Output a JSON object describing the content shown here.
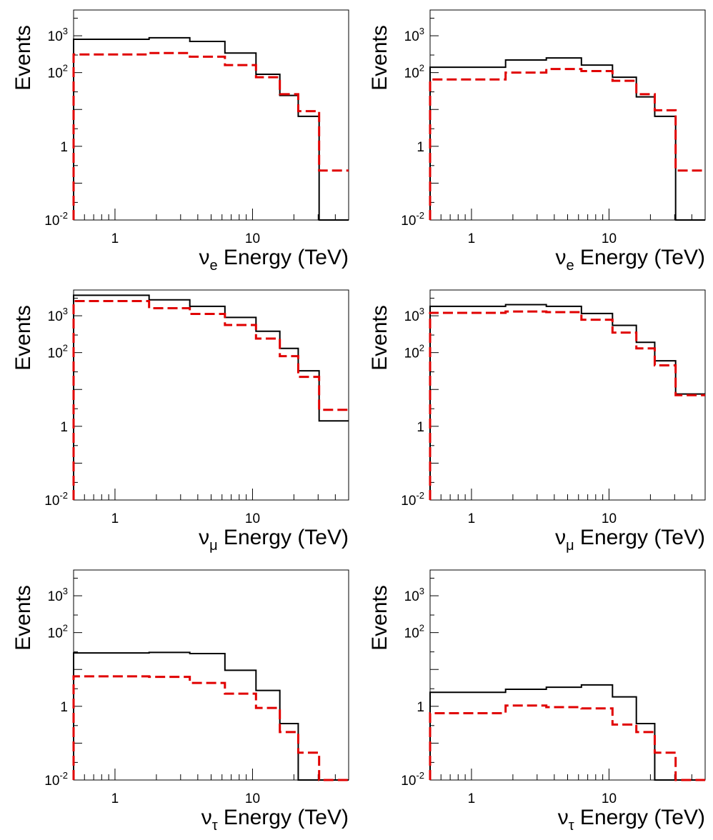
{
  "chart_data": [
    {
      "type": "histogram",
      "xlabel": {
        "symbol": "ν",
        "sub": "e",
        "text": " Energy (TeV)"
      },
      "ylabel": "Events",
      "xscale": "log",
      "yscale": "log",
      "xlim": [
        0.5,
        50
      ],
      "ylim": [
        0.01,
        5000
      ],
      "x_tick_labels": [
        "1",
        "10"
      ],
      "y_tick_labels": [
        {
          "base": "10",
          "exp": "3"
        },
        {
          "base": "10",
          "exp": "2"
        },
        {
          "base": "1",
          "exp": ""
        },
        {
          "base": "10",
          "exp": "-2"
        }
      ],
      "bin_edges": [
        0.5,
        1.77,
        3.5,
        6.3,
        10.6,
        15.8,
        21.5,
        30.5,
        50
      ],
      "series": [
        {
          "style": "solid-black",
          "values": [
            800,
            880,
            700,
            340,
            90,
            24,
            6.5,
            0.01
          ]
        },
        {
          "style": "dashed-red",
          "values": [
            310,
            340,
            270,
            160,
            75,
            26,
            9,
            0.22
          ]
        }
      ]
    },
    {
      "type": "histogram",
      "xlabel": {
        "symbol": "ν",
        "sub": "e",
        "text": " Energy (TeV)"
      },
      "ylabel": "Events",
      "xscale": "log",
      "yscale": "log",
      "xlim": [
        0.5,
        50
      ],
      "ylim": [
        0.01,
        5000
      ],
      "x_tick_labels": [
        "1",
        "10"
      ],
      "y_tick_labels": [
        {
          "base": "10",
          "exp": "3"
        },
        {
          "base": "10",
          "exp": "2"
        },
        {
          "base": "1",
          "exp": ""
        },
        {
          "base": "10",
          "exp": "-2"
        }
      ],
      "bin_edges": [
        0.5,
        1.77,
        3.5,
        6.3,
        10.6,
        15.8,
        21.5,
        30.5,
        50
      ],
      "series": [
        {
          "style": "solid-black",
          "values": [
            140,
            220,
            250,
            160,
            75,
            22,
            6.5,
            0.01
          ]
        },
        {
          "style": "dashed-red",
          "values": [
            65,
            100,
            125,
            110,
            60,
            26,
            9.5,
            0.22
          ]
        }
      ]
    },
    {
      "type": "histogram",
      "xlabel": {
        "symbol": "ν",
        "sub": "μ",
        "text": " Energy (TeV)"
      },
      "ylabel": "Events",
      "xscale": "log",
      "yscale": "log",
      "xlim": [
        0.5,
        50
      ],
      "ylim": [
        0.01,
        5000
      ],
      "x_tick_labels": [
        "1",
        "10"
      ],
      "y_tick_labels": [
        {
          "base": "10",
          "exp": "3"
        },
        {
          "base": "10",
          "exp": "2"
        },
        {
          "base": "1",
          "exp": ""
        },
        {
          "base": "10",
          "exp": "-2"
        }
      ],
      "bin_edges": [
        0.5,
        1.77,
        3.5,
        6.3,
        10.6,
        15.8,
        21.5,
        30.5,
        50
      ],
      "series": [
        {
          "style": "solid-black",
          "values": [
            3600,
            2700,
            1800,
            900,
            380,
            130,
            32,
            1.4
          ]
        },
        {
          "style": "dashed-red",
          "values": [
            2500,
            1600,
            1120,
            560,
            240,
            80,
            22,
            2.8
          ]
        }
      ]
    },
    {
      "type": "histogram",
      "xlabel": {
        "symbol": "ν",
        "sub": "μ",
        "text": " Energy (TeV)"
      },
      "ylabel": "Events",
      "xscale": "log",
      "yscale": "log",
      "xlim": [
        0.5,
        50
      ],
      "ylim": [
        0.01,
        5000
      ],
      "x_tick_labels": [
        "1",
        "10"
      ],
      "y_tick_labels": [
        {
          "base": "10",
          "exp": "3"
        },
        {
          "base": "10",
          "exp": "2"
        },
        {
          "base": "1",
          "exp": ""
        },
        {
          "base": "10",
          "exp": "-2"
        }
      ],
      "bin_edges": [
        0.5,
        1.77,
        3.5,
        6.3,
        10.6,
        15.8,
        21.5,
        30.5,
        50
      ],
      "series": [
        {
          "style": "solid-black",
          "values": [
            1800,
            2000,
            1800,
            1150,
            550,
            190,
            60,
            7.5
          ]
        },
        {
          "style": "dashed-red",
          "values": [
            1200,
            1300,
            1250,
            780,
            350,
            130,
            45,
            7.0
          ]
        }
      ]
    },
    {
      "type": "histogram",
      "xlabel": {
        "symbol": "ν",
        "sub": "τ",
        "text": " Energy (TeV)"
      },
      "ylabel": "Events",
      "xscale": "log",
      "yscale": "log",
      "xlim": [
        0.5,
        50
      ],
      "ylim": [
        0.01,
        5000
      ],
      "x_tick_labels": [
        "1",
        "10"
      ],
      "y_tick_labels": [
        {
          "base": "10",
          "exp": "3"
        },
        {
          "base": "10",
          "exp": "2"
        },
        {
          "base": "1",
          "exp": ""
        },
        {
          "base": "10",
          "exp": "-2"
        }
      ],
      "bin_edges": [
        0.5,
        1.77,
        3.5,
        6.3,
        10.6,
        15.8,
        21.5,
        30.5,
        50
      ],
      "series": [
        {
          "style": "solid-black",
          "values": [
            28,
            29,
            27,
            9.5,
            2.7,
            0.34,
            0.01,
            0.01
          ]
        },
        {
          "style": "dashed-red",
          "values": [
            6.5,
            6.3,
            4.3,
            2.2,
            0.9,
            0.2,
            0.055,
            0.01
          ]
        }
      ]
    },
    {
      "type": "histogram",
      "xlabel": {
        "symbol": "ν",
        "sub": "τ",
        "text": " Energy (TeV)"
      },
      "ylabel": "Events",
      "xscale": "log",
      "yscale": "log",
      "xlim": [
        0.5,
        50
      ],
      "ylim": [
        0.01,
        5000
      ],
      "x_tick_labels": [
        "1",
        "10"
      ],
      "y_tick_labels": [
        {
          "base": "10",
          "exp": "3"
        },
        {
          "base": "10",
          "exp": "2"
        },
        {
          "base": "1",
          "exp": ""
        },
        {
          "base": "10",
          "exp": "-2"
        }
      ],
      "bin_edges": [
        0.5,
        1.77,
        3.5,
        6.3,
        10.6,
        15.8,
        21.5,
        30.5,
        50
      ],
      "series": [
        {
          "style": "solid-black",
          "values": [
            2.4,
            2.9,
            3.3,
            3.8,
            1.8,
            0.34,
            0.01,
            0.01
          ]
        },
        {
          "style": "dashed-red",
          "values": [
            0.65,
            1.05,
            0.95,
            0.88,
            0.32,
            0.2,
            0.055,
            0.01
          ]
        }
      ]
    }
  ]
}
